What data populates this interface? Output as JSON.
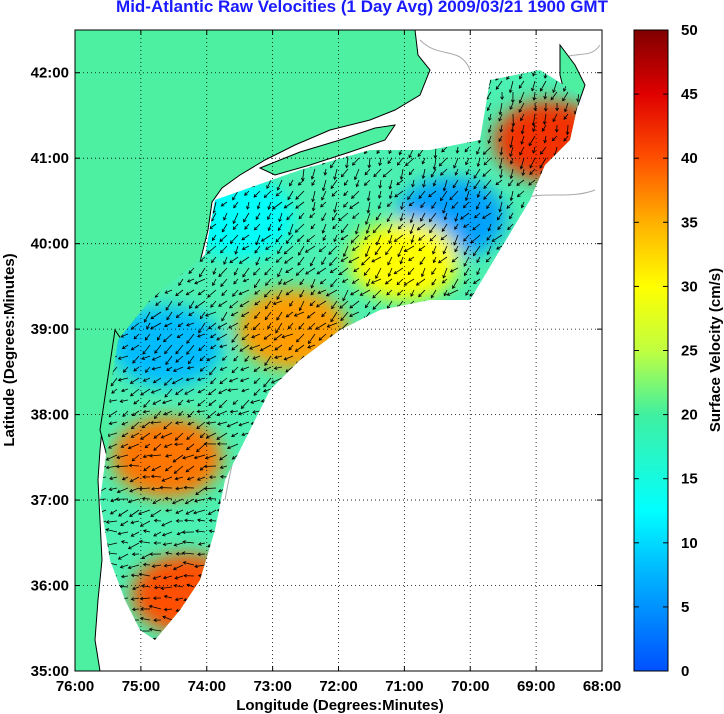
{
  "title": "Mid-Atlantic Raw Velocities (1 Day Avg) 2009/03/21 1900 GMT",
  "map": {
    "xlabel": "Longitude (Degrees:Minutes)",
    "ylabel": "Latitude (Degrees:Minutes)",
    "lon_range": [
      -76,
      -68
    ],
    "lat_range": [
      35,
      42.5
    ],
    "lon_ticks": [
      "76:00",
      "75:00",
      "74:00",
      "73:00",
      "72:00",
      "71:00",
      "70:00",
      "69:00",
      "68:00"
    ],
    "lat_ticks": [
      "35:00",
      "36:00",
      "37:00",
      "38:00",
      "39:00",
      "40:00",
      "41:00",
      "42:00"
    ],
    "grid": "dotted",
    "land_color": "#4cf0a0",
    "water_color": "#ffffff",
    "coast_color": "#000000",
    "bathymetry_color": "#a0a0a0"
  },
  "colorbar": {
    "label": "Surface Velocity (cm/s)",
    "range": [
      0,
      50
    ],
    "ticks": [
      "0",
      "5",
      "10",
      "15",
      "20",
      "25",
      "30",
      "35",
      "40",
      "45",
      "50"
    ],
    "colormap": "jet"
  },
  "chart_data": {
    "type": "heatmap",
    "variable": "surface current speed (cm/s)",
    "regions": [
      {
        "lon": -74.6,
        "lat": 38.8,
        "speed": 8
      },
      {
        "lon": -73.5,
        "lat": 40.3,
        "speed": 13
      },
      {
        "lon": -70.3,
        "lat": 40.3,
        "speed": 6
      },
      {
        "lon": -71.0,
        "lat": 39.8,
        "speed": 30
      },
      {
        "lon": -72.7,
        "lat": 39.0,
        "speed": 36
      },
      {
        "lon": -74.6,
        "lat": 37.5,
        "speed": 38
      },
      {
        "lon": -74.3,
        "lat": 35.9,
        "speed": 40
      },
      {
        "lon": -68.8,
        "lat": 41.2,
        "speed": 42
      }
    ]
  }
}
